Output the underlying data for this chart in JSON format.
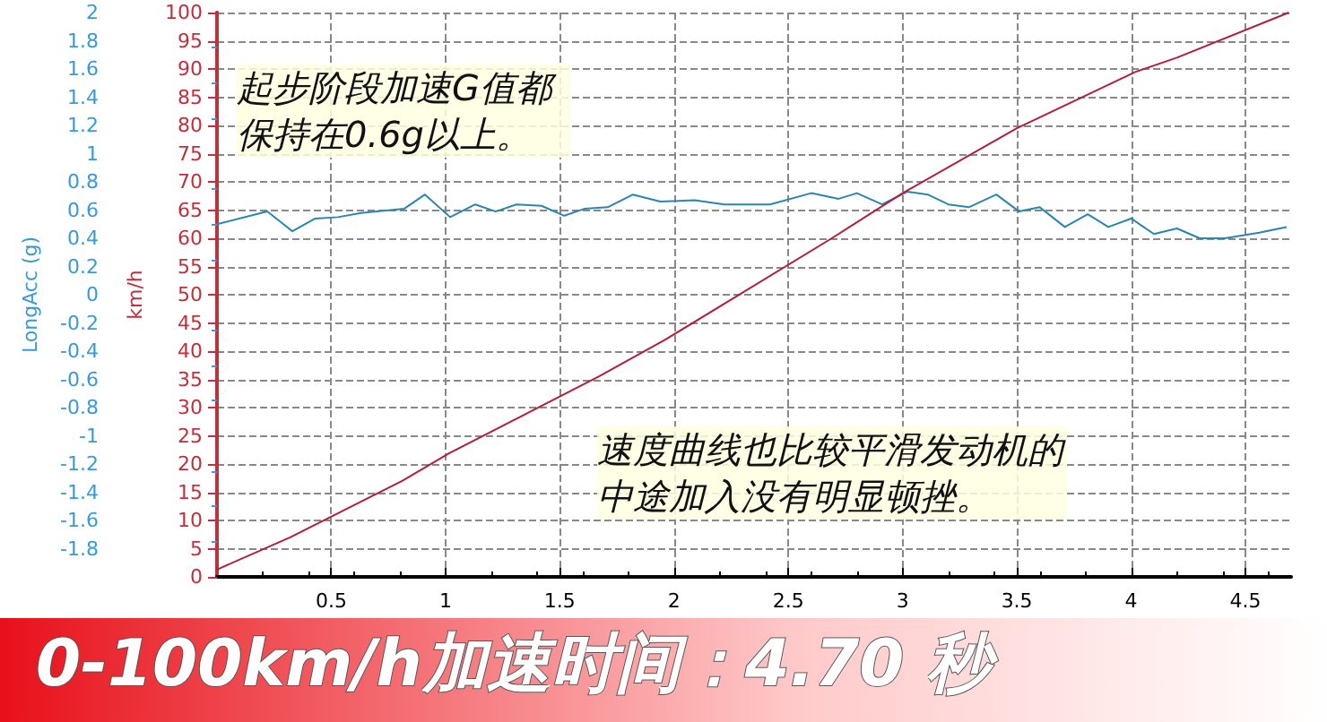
{
  "chart_data": {
    "type": "line",
    "ylabel": "km/h",
    "y2label": "LongAcc (g)",
    "xlim": [
      0,
      4.7
    ],
    "xticks": [
      0.5,
      1,
      1.5,
      2,
      2.5,
      3,
      3.5,
      4,
      4.5
    ],
    "ylim": [
      0,
      100
    ],
    "yticks": [
      0,
      5,
      10,
      15,
      20,
      25,
      30,
      35,
      40,
      45,
      50,
      55,
      60,
      65,
      70,
      75,
      80,
      85,
      90,
      95,
      100
    ],
    "y2lim": [
      -2,
      2
    ],
    "y2ticks": [
      -1.8,
      -1.6,
      -1.4,
      -1.2,
      -1,
      -0.8,
      -0.6,
      -0.4,
      -0.2,
      0,
      0.2,
      0.4,
      0.6,
      0.8,
      1,
      1.2,
      1.4,
      1.6,
      1.8,
      2
    ],
    "grid": true,
    "marker": "none",
    "line_style": "solid",
    "series": [
      {
        "color": "#2a86ad",
        "axis": "y2",
        "x": [
          0,
          0.22,
          0.33,
          0.43,
          0.53,
          0.63,
          0.82,
          0.91,
          1.02,
          1.13,
          1.22,
          1.31,
          1.42,
          1.52,
          1.61,
          1.71,
          1.82,
          1.94,
          2.09,
          2.22,
          2.42,
          2.6,
          2.72,
          2.8,
          2.91,
          3.02,
          3.11,
          3.2,
          3.29,
          3.41,
          3.51,
          3.6,
          3.71,
          3.81,
          3.9,
          4,
          4.1,
          4.2,
          4.3,
          4.41,
          4.56,
          4.68
        ],
        "values": [
          0.5,
          0.59,
          0.45,
          0.54,
          0.55,
          0.58,
          0.61,
          0.71,
          0.55,
          0.64,
          0.59,
          0.64,
          0.63,
          0.56,
          0.61,
          0.62,
          0.71,
          0.66,
          0.67,
          0.64,
          0.64,
          0.72,
          0.68,
          0.72,
          0.64,
          0.73,
          0.71,
          0.64,
          0.62,
          0.71,
          0.59,
          0.62,
          0.48,
          0.57,
          0.48,
          0.54,
          0.43,
          0.47,
          0.4,
          0.4,
          0.44,
          0.48
        ]
      },
      {
        "color": "#b01e3c",
        "x": [
          0,
          0.32,
          0.81,
          1.02,
          1.67,
          1.96,
          2.69,
          3,
          3.5,
          4.02,
          4.2,
          4.69
        ],
        "values": [
          1.3,
          7,
          17,
          22,
          35.5,
          42,
          60,
          68,
          79.5,
          89.5,
          92,
          100
        ]
      }
    ],
    "annotations": [
      "起步阶段加速G值都保持在0.6g以上。",
      "速度曲线也比较平滑发动机的中途加入没有明显顿挫。",
      "0-100km/h加速时间：4.70 秒"
    ]
  }
}
